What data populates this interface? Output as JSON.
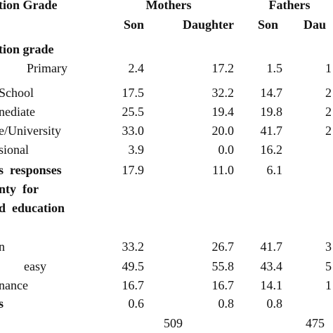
{
  "header": {
    "title": "tion Grade",
    "groups": [
      "Mothers",
      "Fathers"
    ],
    "subheaders": [
      "Son",
      "Daughter",
      "Son",
      "Dau"
    ]
  },
  "rows": [
    {
      "label": "tion grade",
      "cells": []
    },
    {
      "label": "Primary",
      "cells": [
        "2.4",
        "17.2",
        "1.5",
        "1"
      ]
    },
    {
      "label": "School",
      "cells": [
        "17.5",
        "32.2",
        "14.7",
        "2"
      ]
    },
    {
      "label": "nediate",
      "cells": [
        "25.5",
        "19.4",
        "19.8",
        "2"
      ]
    },
    {
      "label": "e/University",
      "cells": [
        "33.0",
        "20.0",
        "41.7",
        "2"
      ]
    },
    {
      "label": "sional",
      "cells": [
        "3.9",
        "0.0",
        "16.2"
      ]
    },
    {
      "label": "s  responses",
      "cells": [
        "17.9",
        "11.0",
        "6.1"
      ]
    },
    {
      "label": "nty  for",
      "cells": []
    },
    {
      "label": "d  education",
      "cells": []
    },
    {
      "label": "n",
      "cells": [
        "33.2",
        "26.7",
        "41.7",
        "3"
      ]
    },
    {
      "label": "easy",
      "cells": [
        "49.5",
        "55.8",
        "43.4",
        "5"
      ]
    },
    {
      "label": "nance",
      "cells": [
        "16.7",
        "16.7",
        "14.1",
        "1"
      ]
    },
    {
      "label": "s",
      "cells": [
        "0.6",
        "0.8",
        "0.8"
      ]
    }
  ],
  "totals": {
    "mothers": "509",
    "fathers": "475"
  }
}
